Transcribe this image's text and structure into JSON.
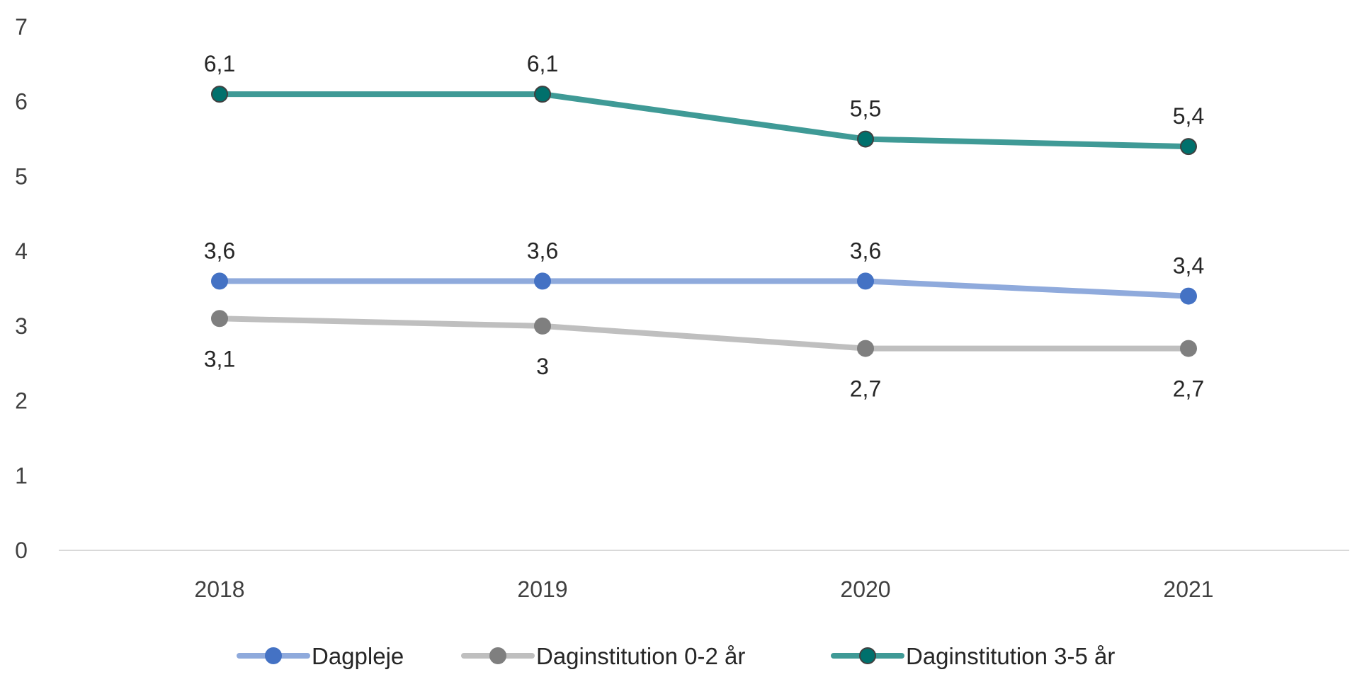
{
  "chart_data": {
    "type": "line",
    "title": "",
    "xlabel": "",
    "ylabel": "",
    "categories": [
      "2018",
      "2019",
      "2020",
      "2021"
    ],
    "ylim": [
      0,
      7
    ],
    "yticks": [
      "0",
      "1",
      "2",
      "3",
      "4",
      "5",
      "6",
      "7"
    ],
    "grid": false,
    "legend_position": "bottom",
    "series": [
      {
        "name": "Dagpleje",
        "values": [
          3.6,
          3.6,
          3.6,
          3.4
        ],
        "labels": [
          "3,6",
          "3,6",
          "3,6",
          "3,4"
        ],
        "label_position": "above",
        "line_color": "#8faadc",
        "marker_color": "#4472c4",
        "marker_edge": "#4472c4"
      },
      {
        "name": "Daginstitution 0-2 år",
        "values": [
          3.1,
          3.0,
          2.7,
          2.7
        ],
        "labels": [
          "3,1",
          "3",
          "2,7",
          "2,7"
        ],
        "label_position": "below",
        "line_color": "#bfbfbf",
        "marker_color": "#7f7f7f",
        "marker_edge": "#7f7f7f"
      },
      {
        "name": "Daginstitution 3-5 år",
        "values": [
          6.1,
          6.1,
          5.5,
          5.4
        ],
        "labels": [
          "6,1",
          "6,1",
          "5,5",
          "5,4"
        ],
        "label_position": "above",
        "line_color": "#3f9a96",
        "marker_color": "#00706c",
        "marker_edge": "#404040"
      }
    ]
  }
}
